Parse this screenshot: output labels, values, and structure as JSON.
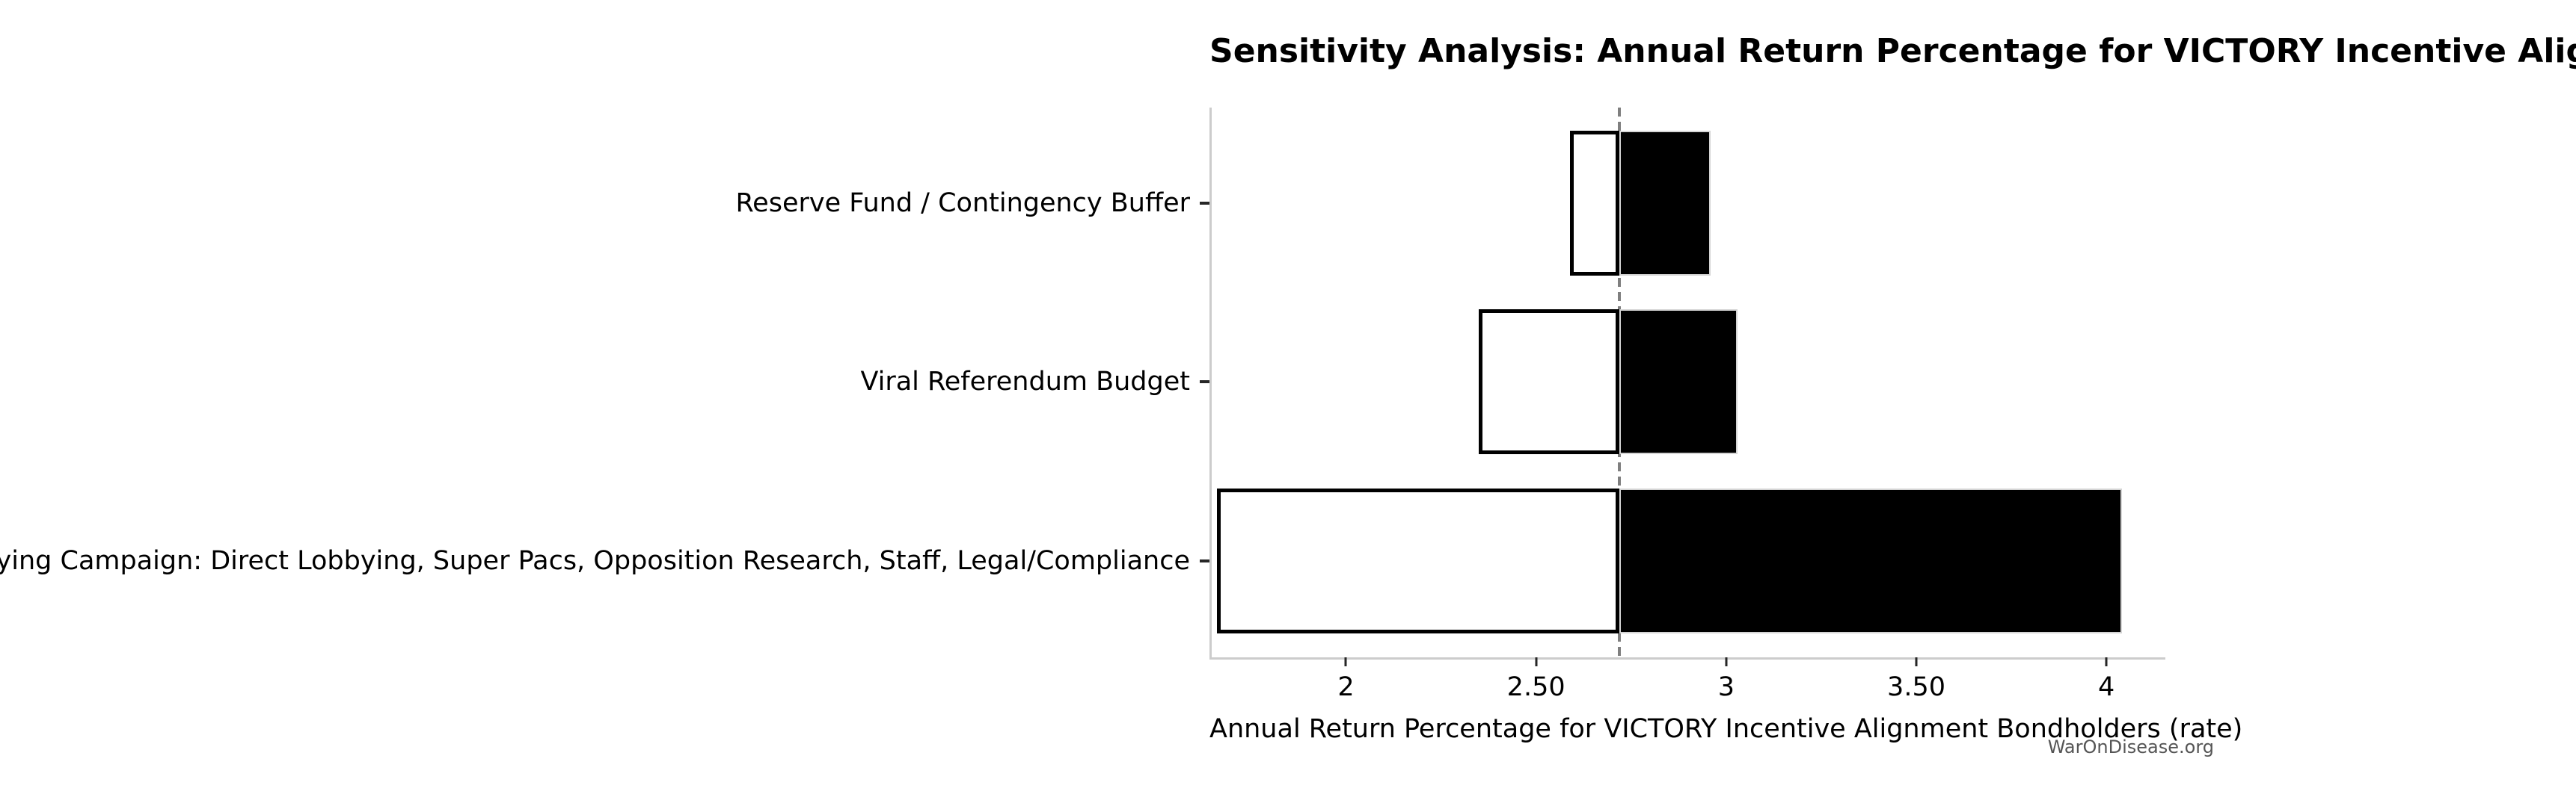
{
  "figure": {
    "watermark": "WarOnDisease.org"
  },
  "chart_data": {
    "type": "bar",
    "subtype": "horizontal-tornado-sensitivity",
    "title": "Sensitivity Analysis: Annual Return Percentage for VICTORY Incentive Alignment Bondholders",
    "xlabel": "Annual Return Percentage for VICTORY Incentive Alignment Bondholders (rate)",
    "ylabel": "",
    "categories": [
      "Reserve Fund / Contingency Buffer",
      "Viral Referendum Budget",
      "Political Lobbying Campaign: Direct Lobbying, Super Pacs, Opposition Research, Staff, Legal/Compliance"
    ],
    "baseline": 2.72,
    "series": [
      {
        "name": "low-end estimate (white bar, low to baseline)",
        "values": [
          2.59,
          2.35,
          1.66
        ]
      },
      {
        "name": "high-end estimate (black bar, baseline to high)",
        "values": [
          2.96,
          3.03,
          4.04
        ]
      }
    ],
    "xlim": [
      1.647,
      4.155
    ],
    "x_ticks": [
      {
        "value": 2,
        "label": "2"
      },
      {
        "value": 2.5,
        "label": "2.50"
      },
      {
        "value": 3,
        "label": "3"
      },
      {
        "value": 3.5,
        "label": "3.50"
      },
      {
        "value": 4,
        "label": "4"
      }
    ],
    "grid": false,
    "legend": false,
    "colors": {
      "low_bar_fill": "#ffffff",
      "low_bar_edge": "#000000",
      "high_bar_fill": "#000000",
      "high_bar_edge": "#d4d4d4",
      "baseline_dash": "#7f7f7f",
      "spine": "#cccccc",
      "tick": "#262626",
      "text": "#000000",
      "watermark": "#555555"
    }
  }
}
